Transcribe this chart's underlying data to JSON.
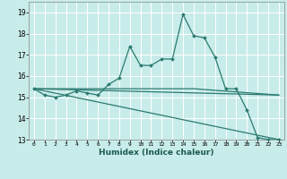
{
  "xlabel": "Humidex (Indice chaleur)",
  "bg_color": "#c8ece9",
  "grid_color": "#ffffff",
  "line_color": "#2a7a70",
  "xlim": [
    -0.5,
    23.5
  ],
  "ylim": [
    13,
    19.5
  ],
  "yticks": [
    13,
    14,
    15,
    16,
    17,
    18,
    19
  ],
  "xticks": [
    0,
    1,
    2,
    3,
    4,
    5,
    6,
    7,
    8,
    9,
    10,
    11,
    12,
    13,
    14,
    15,
    16,
    17,
    18,
    19,
    20,
    21,
    22,
    23
  ],
  "lines": [
    {
      "x": [
        0,
        1,
        2,
        3,
        4,
        5,
        6,
        7,
        8,
        9,
        10,
        11,
        12,
        13,
        14,
        15,
        16,
        17,
        18,
        19,
        20,
        21,
        22,
        23
      ],
      "y": [
        15.4,
        15.1,
        15.0,
        15.1,
        15.3,
        15.2,
        15.1,
        15.6,
        15.9,
        17.4,
        16.5,
        16.5,
        16.8,
        16.8,
        18.9,
        17.9,
        17.8,
        16.9,
        15.4,
        15.4,
        14.4,
        13.1,
        13.0,
        13.0
      ],
      "marker": "D",
      "markersize": 2.0,
      "linewidth": 0.9,
      "has_marker": true
    },
    {
      "x": [
        0,
        23
      ],
      "y": [
        15.4,
        15.1
      ],
      "marker": null,
      "markersize": 0,
      "linewidth": 0.9,
      "has_marker": false
    },
    {
      "x": [
        0,
        23
      ],
      "y": [
        15.4,
        13.0
      ],
      "marker": null,
      "markersize": 0,
      "linewidth": 0.9,
      "has_marker": false
    },
    {
      "x": [
        0,
        15,
        23
      ],
      "y": [
        15.4,
        15.4,
        15.1
      ],
      "marker": null,
      "markersize": 0,
      "linewidth": 0.9,
      "has_marker": false
    }
  ]
}
